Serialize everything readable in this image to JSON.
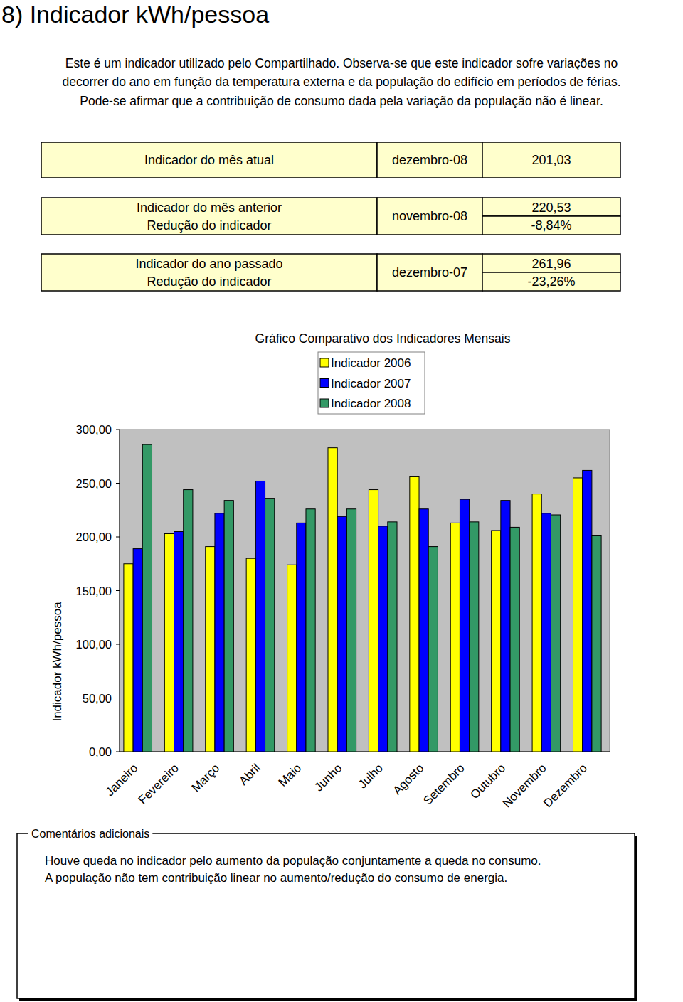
{
  "page": {
    "title": "8) Indicador kWh/pessoa",
    "intro": [
      "Este é um indicador utilizado pelo Compartilhado. Observa-se que este indicador sofre variações no",
      "decorrer do ano em função da temperatura externa e da população do edifício em períodos de férias.",
      "Pode-se afirmar que a contribuição de consumo dada pela variação da população não é linear."
    ],
    "summary": {
      "current": {
        "label": "Indicador do mês atual",
        "period": "dezembro-08",
        "value": "201,03"
      },
      "previous": {
        "label": "Indicador do mês anterior",
        "reduction_label": "Redução do indicador",
        "period": "novembro-08",
        "value": "220,53",
        "reduction": "-8,84%"
      },
      "last_year": {
        "label": "Indicador do ano passado",
        "reduction_label": "Redução do indicador",
        "period": "dezembro-07",
        "value": "261,96",
        "reduction": "-23,26%"
      }
    },
    "comments": {
      "title": "Comentários adicionais",
      "lines": [
        "Houve queda no indicador pelo aumento da população conjuntamente a queda no consumo.",
        "A população não tem contribuição linear no aumento/redução do consumo de energia."
      ]
    }
  },
  "chart_data": {
    "type": "bar",
    "title": "Gráfico Comparativo dos Indicadores Mensais",
    "y_label": "Indicador kWh/pessoa",
    "categories": [
      "Janeiro",
      "Fevereiro",
      "Março",
      "Abril",
      "Maio",
      "Junho",
      "Julho",
      "Agosto",
      "Setembro",
      "Outubro",
      "Novembro",
      "Dezembro"
    ],
    "series": [
      {
        "name": "Indicador 2006",
        "color": "#ffff00",
        "values": [
          175,
          203,
          191,
          180,
          174,
          283,
          244,
          256,
          213,
          206,
          240,
          255
        ]
      },
      {
        "name": "Indicador 2007",
        "color": "#0000ff",
        "values": [
          189,
          205,
          222,
          252,
          213,
          219,
          210,
          226,
          235,
          234,
          222,
          261.96
        ]
      },
      {
        "name": "Indicador 2008",
        "color": "#339966",
        "values": [
          286,
          244,
          234,
          236,
          226,
          226,
          214,
          191,
          214,
          209,
          220.53,
          201.03
        ]
      }
    ],
    "ylim": [
      0,
      300
    ],
    "yticks": [
      {
        "value": 0,
        "label": "0,00"
      },
      {
        "value": 50,
        "label": "50,00"
      },
      {
        "value": 100,
        "label": "100,00"
      },
      {
        "value": 150,
        "label": "150,00"
      },
      {
        "value": 200,
        "label": "200,00"
      },
      {
        "value": 250,
        "label": "250,00"
      },
      {
        "value": 300,
        "label": "300,00"
      }
    ],
    "grid": false,
    "legend": "top"
  }
}
